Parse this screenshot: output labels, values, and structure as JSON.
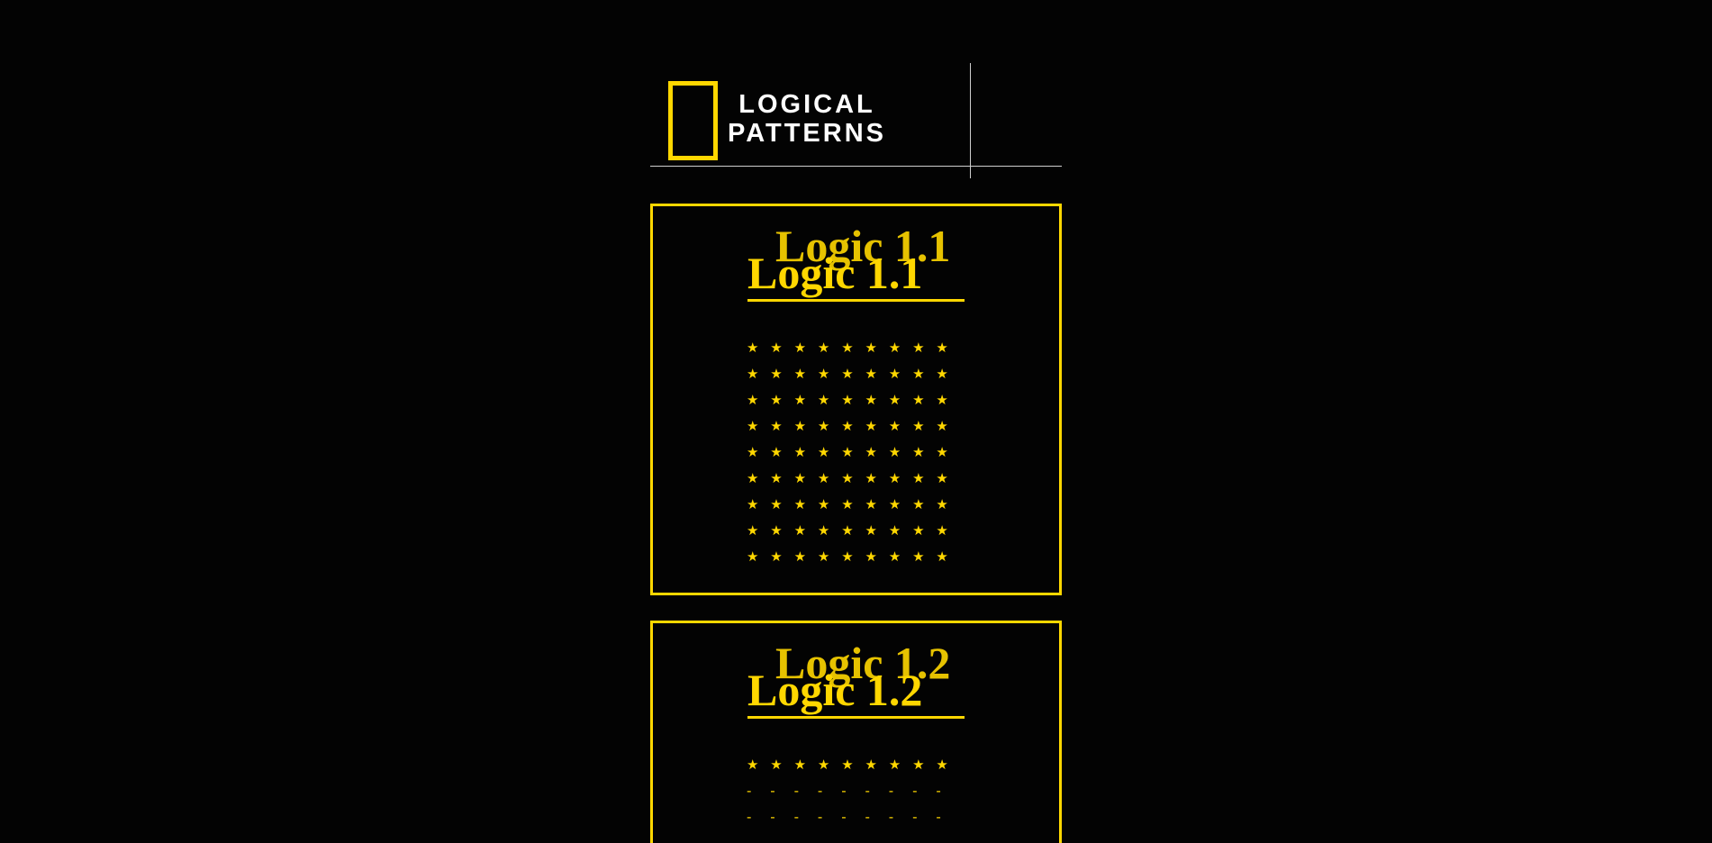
{
  "header": {
    "brand_line_1": "LOGICAL",
    "brand_line_2": "PATTERNS",
    "logo": "yellow-rectangle-logo"
  },
  "colors": {
    "background": "#030303",
    "accent": "#ffd700",
    "text": "#ffffff",
    "rule": "#cfcfcf"
  },
  "cards": [
    {
      "title": "Logic 1.1",
      "title_shadow": "Logic 1.1",
      "rows": [
        [
          "★",
          "★",
          "★",
          "★",
          "★",
          "★",
          "★",
          "★",
          "★"
        ],
        [
          "★",
          "★",
          "★",
          "★",
          "★",
          "★",
          "★",
          "★",
          "★"
        ],
        [
          "★",
          "★",
          "★",
          "★",
          "★",
          "★",
          "★",
          "★",
          "★"
        ],
        [
          "★",
          "★",
          "★",
          "★",
          "★",
          "★",
          "★",
          "★",
          "★"
        ],
        [
          "★",
          "★",
          "★",
          "★",
          "★",
          "★",
          "★",
          "★",
          "★"
        ],
        [
          "★",
          "★",
          "★",
          "★",
          "★",
          "★",
          "★",
          "★",
          "★"
        ],
        [
          "★",
          "★",
          "★",
          "★",
          "★",
          "★",
          "★",
          "★",
          "★"
        ],
        [
          "★",
          "★",
          "★",
          "★",
          "★",
          "★",
          "★",
          "★",
          "★"
        ],
        [
          "★",
          "★",
          "★",
          "★",
          "★",
          "★",
          "★",
          "★",
          "★"
        ]
      ]
    },
    {
      "title": "Logic 1.2",
      "title_shadow": "Logic 1.2",
      "rows": [
        [
          "★",
          "★",
          "★",
          "★",
          "★",
          "★",
          "★",
          "★",
          "★"
        ],
        [
          "-",
          "-",
          "-",
          "-",
          "-",
          "-",
          "-",
          "-",
          "-"
        ],
        [
          "-",
          "-",
          "-",
          "-",
          "-",
          "-",
          "-",
          "-",
          "-"
        ],
        [
          "-",
          "-",
          "-",
          "-",
          "-",
          "-",
          "-",
          "-",
          "-"
        ]
      ]
    }
  ]
}
